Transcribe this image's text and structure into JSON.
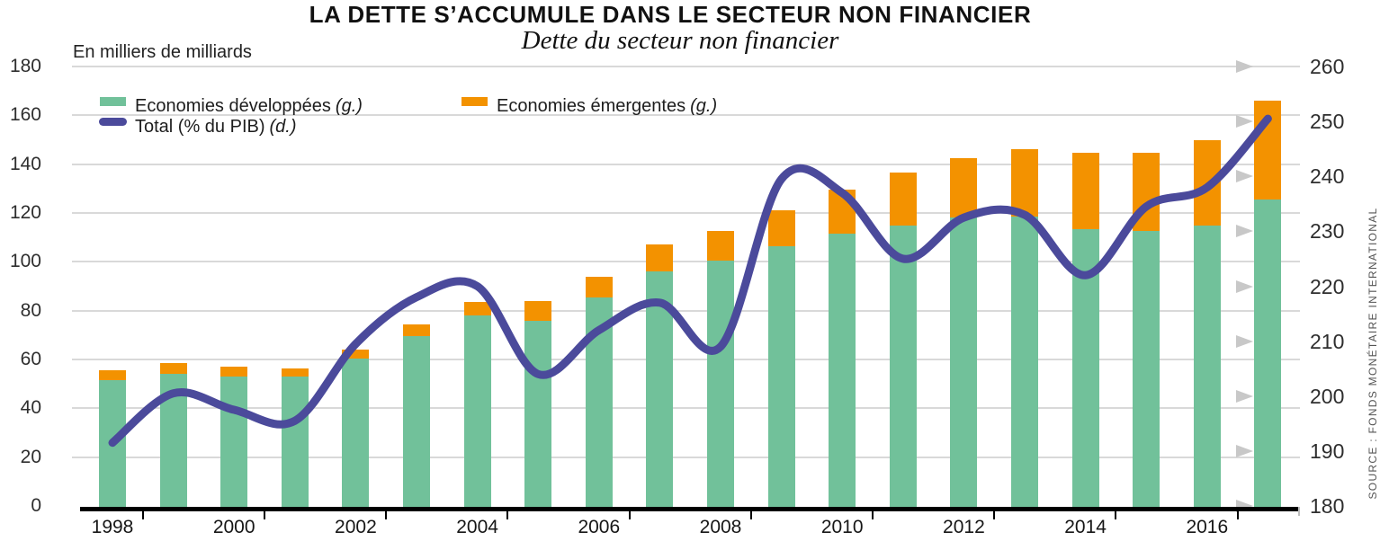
{
  "title": "LA DETTE S’ACCUMULE DANS LE SECTEUR NON FINANCIER",
  "subtitle": "Dette du secteur non financier",
  "source_note": "SOURCE : FONDS MONÉTAIRE INTERNATIONAL",
  "legend": [
    {
      "label": "Economies développées",
      "qualifier": "(g.)",
      "color": "#71c19a",
      "kind": "bar"
    },
    {
      "label": "Economies émergentes",
      "qualifier": "(g.)",
      "color": "#f39200",
      "kind": "bar"
    },
    {
      "label": "Total (% du PIB)",
      "qualifier": "(d.)",
      "color": "#4b4a9b",
      "kind": "line"
    }
  ],
  "colors": {
    "developed_green": "#71c19a",
    "emerging_orange": "#f39200",
    "total_line_blue": "#4b4a9b",
    "gridline_gray": "#d9d9d9",
    "arrow_gray": "#c8c8c8",
    "axis_black": "#000000"
  },
  "chart_data": {
    "type": "bar+line",
    "title": "Dette du secteur non financier",
    "categories": [
      1998,
      1999,
      2000,
      2001,
      2002,
      2003,
      2004,
      2005,
      2006,
      2007,
      2008,
      2009,
      2010,
      2011,
      2012,
      2013,
      2014,
      2015,
      2016,
      2017
    ],
    "x_tick_labels": [
      "1998",
      "2000",
      "2002",
      "2004",
      "2006",
      "2008",
      "2010",
      "2012",
      "2014",
      "2016"
    ],
    "series": [
      {
        "name": "Economies développées (g.)",
        "type": "bar",
        "stack": "dette",
        "axis": "left",
        "color": "#71c19a",
        "values": [
          51.5,
          54,
          53,
          53,
          60.5,
          69.5,
          78,
          76,
          85.5,
          96,
          100.5,
          106.5,
          111.5,
          115,
          118,
          118.5,
          113.5,
          112.5,
          115,
          125.5
        ]
      },
      {
        "name": "Economies émergentes (g.)",
        "type": "bar",
        "stack": "dette",
        "axis": "left",
        "color": "#f39200",
        "values": [
          4,
          4.5,
          4,
          3.5,
          3.5,
          5,
          5.5,
          8,
          8.5,
          11,
          12,
          14.5,
          18,
          21.5,
          24.5,
          27.5,
          31,
          32,
          35,
          40.5
        ]
      },
      {
        "name": "Total (% du PIB) (d.)",
        "type": "line",
        "axis": "right",
        "color": "#4b4a9b",
        "values": [
          191.5,
          200.5,
          197.5,
          195.5,
          209.5,
          218,
          220,
          204,
          212,
          217,
          209,
          239.5,
          237,
          225,
          232.5,
          233,
          222,
          234.5,
          238,
          250.5
        ]
      }
    ],
    "left_axis": {
      "label": "En milliers de milliards",
      "min": 0,
      "max": 180,
      "tick_step": 20,
      "tick_labels": [
        "180",
        "160",
        "140",
        "120",
        "100",
        "80",
        "60",
        "40",
        "20",
        "0"
      ]
    },
    "right_axis": {
      "min": 180,
      "max": 260,
      "tick_step": 10,
      "tick_labels": [
        "260",
        "250",
        "240",
        "230",
        "220",
        "210",
        "200",
        "190",
        "180"
      ]
    },
    "grid": true,
    "legend_position": "top-left"
  }
}
